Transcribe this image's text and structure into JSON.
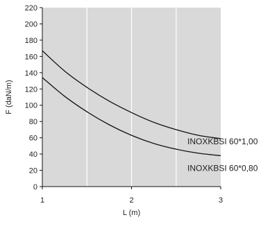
{
  "chart_data": {
    "type": "line",
    "title": "",
    "xlabel": "L (m)",
    "ylabel": "F (daN/m)",
    "xlim": [
      1,
      3
    ],
    "ylim": [
      0,
      220
    ],
    "x_ticks": [
      1,
      2,
      3
    ],
    "y_ticks": [
      0,
      20,
      40,
      60,
      80,
      100,
      120,
      140,
      160,
      180,
      200,
      220
    ],
    "x_tick_labels": [
      "1",
      "2",
      "3"
    ],
    "y_tick_labels": [
      "0",
      "20",
      "40",
      "60",
      "80",
      "100",
      "120",
      "140",
      "160",
      "180",
      "200",
      "220"
    ],
    "grid": true,
    "background": "#d9d9d9",
    "grid_color": "#ffffff",
    "line_color": "#111111",
    "series": [
      {
        "name": "INOXKBSI 60*1,00",
        "x": [
          1.0,
          1.25,
          1.5,
          1.75,
          2.0,
          2.25,
          2.5,
          2.75,
          3.0
        ],
        "y": [
          167,
          142,
          122,
          105,
          91,
          79,
          70,
          63,
          59
        ]
      },
      {
        "name": "INOXKBSI 60*0,80",
        "x": [
          1.0,
          1.25,
          1.5,
          1.75,
          2.0,
          2.25,
          2.5,
          2.75,
          3.0
        ],
        "y": [
          134,
          111,
          92,
          76,
          63,
          53,
          46,
          41,
          38
        ]
      }
    ]
  }
}
